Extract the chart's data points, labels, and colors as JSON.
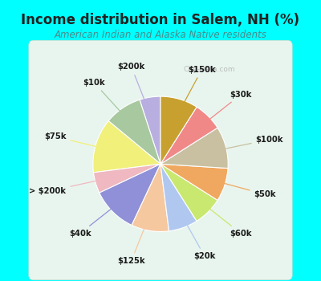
{
  "title": "Income distribution in Salem, NH (%)",
  "subtitle": "American Indian and Alaska Native residents",
  "title_color": "#222222",
  "subtitle_color": "#4a8a8a",
  "bg_color": "#00ffff",
  "chart_rect_color": "#e8f5ee",
  "labels": [
    "$200k",
    "$10k",
    "$75k",
    "> $200k",
    "$40k",
    "$125k",
    "$20k",
    "$60k",
    "$50k",
    "$100k",
    "$30k",
    "$150k"
  ],
  "values": [
    5,
    9,
    13,
    5,
    11,
    9,
    7,
    7,
    8,
    10,
    7,
    9
  ],
  "colors": [
    "#b8aee0",
    "#a8c8a0",
    "#f0f07a",
    "#f0b8c0",
    "#9090d8",
    "#f5c8a0",
    "#b0c8f0",
    "#c8e870",
    "#f0a860",
    "#c8c0a0",
    "#f08888",
    "#c8a030"
  ],
  "startangle": 90,
  "wedge_edge_color": "#ffffff",
  "watermark": "City-Data.com"
}
